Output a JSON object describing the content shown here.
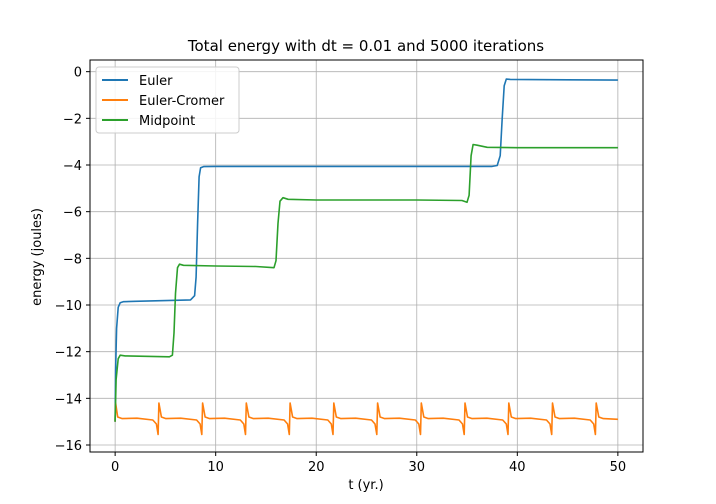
{
  "chart_data": {
    "type": "line",
    "title": "Total energy with dt = 0.01 and 5000 iterations",
    "xlabel": "t (yr.)",
    "ylabel": "energy (joules)",
    "xlim": [
      -2.5,
      52.5
    ],
    "ylim": [
      -16.3,
      0.5
    ],
    "xticks": [
      0,
      10,
      20,
      30,
      40,
      50
    ],
    "yticks": [
      0,
      -2,
      -4,
      -6,
      -8,
      -10,
      -12,
      -14,
      -16
    ],
    "grid": true,
    "legend_position": "top-left",
    "series": [
      {
        "name": "Euler",
        "color": "#1f77b4",
        "points": [
          [
            0,
            -15.0
          ],
          [
            0.05,
            -12.8
          ],
          [
            0.15,
            -11.0
          ],
          [
            0.3,
            -10.1
          ],
          [
            0.5,
            -9.9
          ],
          [
            0.8,
            -9.86
          ],
          [
            2,
            -9.84
          ],
          [
            4,
            -9.82
          ],
          [
            6,
            -9.8
          ],
          [
            7.5,
            -9.78
          ],
          [
            7.9,
            -9.6
          ],
          [
            8.05,
            -8.8
          ],
          [
            8.2,
            -6.5
          ],
          [
            8.35,
            -4.5
          ],
          [
            8.5,
            -4.12
          ],
          [
            8.8,
            -4.07
          ],
          [
            10,
            -4.06
          ],
          [
            20,
            -4.06
          ],
          [
            30,
            -4.06
          ],
          [
            37.5,
            -4.06
          ],
          [
            38.0,
            -4.02
          ],
          [
            38.3,
            -3.6
          ],
          [
            38.5,
            -2.0
          ],
          [
            38.7,
            -0.6
          ],
          [
            38.9,
            -0.32
          ],
          [
            39.3,
            -0.33
          ],
          [
            45,
            -0.35
          ],
          [
            50,
            -0.36
          ]
        ]
      },
      {
        "name": "Euler-Cromer",
        "color": "#ff7f0e",
        "period": 4.35,
        "base": -14.85,
        "spike_top": -14.2,
        "dip_bottom": -15.55
      },
      {
        "name": "Midpoint",
        "color": "#2ca02c",
        "points": [
          [
            0,
            -15.0
          ],
          [
            0.1,
            -13.2
          ],
          [
            0.3,
            -12.3
          ],
          [
            0.5,
            -12.15
          ],
          [
            1,
            -12.18
          ],
          [
            3,
            -12.2
          ],
          [
            5.4,
            -12.22
          ],
          [
            5.7,
            -12.15
          ],
          [
            5.85,
            -11.2
          ],
          [
            6.0,
            -9.5
          ],
          [
            6.2,
            -8.4
          ],
          [
            6.4,
            -8.25
          ],
          [
            6.8,
            -8.3
          ],
          [
            10,
            -8.33
          ],
          [
            14,
            -8.35
          ],
          [
            15.8,
            -8.4
          ],
          [
            16.0,
            -8.1
          ],
          [
            16.2,
            -6.5
          ],
          [
            16.4,
            -5.55
          ],
          [
            16.7,
            -5.4
          ],
          [
            17.2,
            -5.47
          ],
          [
            20,
            -5.5
          ],
          [
            30,
            -5.5
          ],
          [
            34.5,
            -5.52
          ],
          [
            35.0,
            -5.6
          ],
          [
            35.2,
            -5.3
          ],
          [
            35.4,
            -3.6
          ],
          [
            35.6,
            -3.12
          ],
          [
            36.0,
            -3.15
          ],
          [
            37,
            -3.24
          ],
          [
            40,
            -3.26
          ],
          [
            50,
            -3.26
          ]
        ]
      }
    ]
  }
}
